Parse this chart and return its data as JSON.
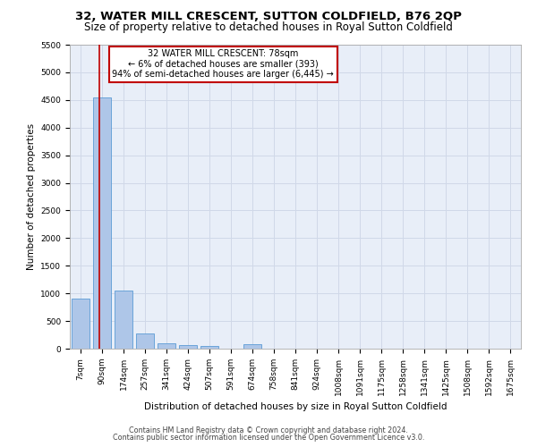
{
  "title_line1": "32, WATER MILL CRESCENT, SUTTON COLDFIELD, B76 2QP",
  "title_line2": "Size of property relative to detached houses in Royal Sutton Coldfield",
  "xlabel": "Distribution of detached houses by size in Royal Sutton Coldfield",
  "ylabel": "Number of detached properties",
  "footnote1": "Contains HM Land Registry data © Crown copyright and database right 2024.",
  "footnote2": "Contains public sector information licensed under the Open Government Licence v3.0.",
  "bar_labels": [
    "7sqm",
    "90sqm",
    "174sqm",
    "257sqm",
    "341sqm",
    "424sqm",
    "507sqm",
    "591sqm",
    "674sqm",
    "758sqm",
    "841sqm",
    "924sqm",
    "1008sqm",
    "1091sqm",
    "1175sqm",
    "1258sqm",
    "1341sqm",
    "1425sqm",
    "1508sqm",
    "1592sqm",
    "1675sqm"
  ],
  "bar_values": [
    900,
    4540,
    1050,
    280,
    90,
    65,
    55,
    0,
    75,
    0,
    0,
    0,
    0,
    0,
    0,
    0,
    0,
    0,
    0,
    0,
    0
  ],
  "bar_color": "#aec6e8",
  "bar_edge_color": "#5b9bd5",
  "subject_line_color": "#c00000",
  "annotation_box_color": "#c00000",
  "annotation_text_line1": "32 WATER MILL CRESCENT: 78sqm",
  "annotation_text_line2": "← 6% of detached houses are smaller (393)",
  "annotation_text_line3": "94% of semi-detached houses are larger (6,445) →",
  "ylim": [
    0,
    5500
  ],
  "yticks": [
    0,
    500,
    1000,
    1500,
    2000,
    2500,
    3000,
    3500,
    4000,
    4500,
    5000,
    5500
  ],
  "grid_color": "#d0d8e8",
  "background_color": "#e8eef8",
  "title_fontsize": 9.5,
  "subtitle_fontsize": 8.5,
  "axis_fontsize": 7.5,
  "tick_fontsize": 6.5,
  "footnote_fontsize": 5.8,
  "annotation_fontsize": 7.0
}
